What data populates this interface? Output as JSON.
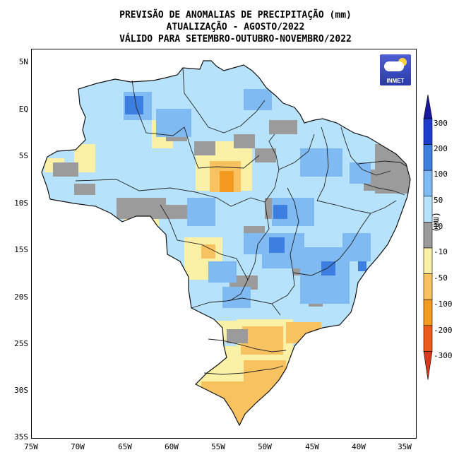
{
  "title": {
    "line1": "PREVISÃO DE ANOMALIAS DE PRECIPITAÇÃO (mm)",
    "line2": "ATUALIZAÇÃO - AGOSTO/2022",
    "line3": "VÁLIDO PARA SETEMBRO-OUTUBRO-NOVEMBRO/2022"
  },
  "logo": {
    "text": "INMET"
  },
  "axes": {
    "lat_labels": [
      "5N",
      "EQ",
      "5S",
      "10S",
      "15S",
      "20S",
      "25S",
      "30S",
      "35S"
    ],
    "lon_labels": [
      "75W",
      "70W",
      "65W",
      "60W",
      "55W",
      "50W",
      "45W",
      "40W",
      "35W"
    ]
  },
  "colorbar": {
    "unit": "(mm)",
    "labels": [
      "300",
      "200",
      "100",
      "50",
      "10",
      "-10",
      "-50",
      "-100",
      "-200",
      "-300"
    ],
    "classes": [
      {
        "range": "200 a 300",
        "color": "#1e3ccc"
      },
      {
        "range": "100 a 200",
        "color": "#3d7fe0"
      },
      {
        "range": "50 a 100",
        "color": "#7fbaf2"
      },
      {
        "range": "10 a 50",
        "color": "#b7e2fb"
      },
      {
        "range": "-10 a 10",
        "color": "#9b9b9b"
      },
      {
        "range": "-50 a -10",
        "color": "#fbf1a6"
      },
      {
        "range": "-100 a -50",
        "color": "#f8c260"
      },
      {
        "range": "-200 a -100",
        "color": "#f39a1f"
      },
      {
        "range": "-300 a -200",
        "color": "#ea5a1a"
      }
    ]
  }
}
